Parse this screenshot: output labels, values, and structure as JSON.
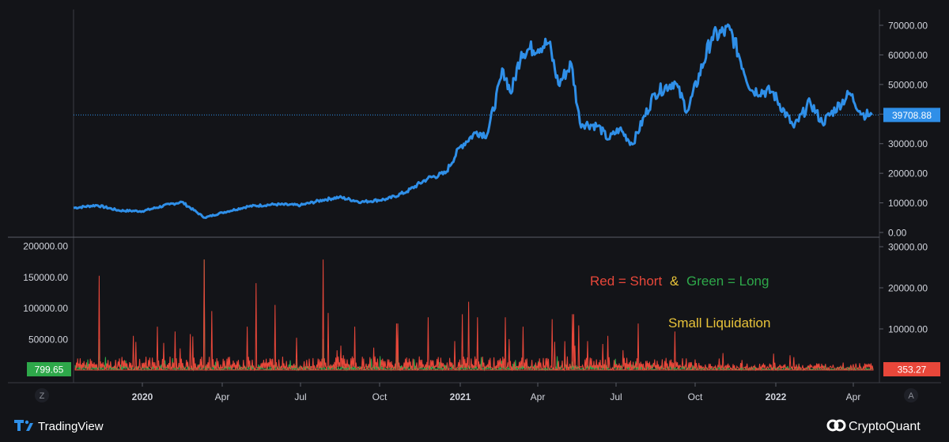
{
  "chart_data": [
    {
      "type": "line",
      "name": "price",
      "x_ticks": [
        "2020",
        "Apr",
        "Jul",
        "Oct",
        "2021",
        "Apr",
        "Jul",
        "Oct",
        "2022",
        "Apr"
      ],
      "y_ticks": [
        "70000.00",
        "60000.00",
        "50000.00",
        "40000.00",
        "30000.00",
        "20000.00",
        "10000.00",
        "0.00"
      ],
      "ylim": [
        0,
        70000
      ],
      "last_value_label": "39708.88",
      "last_value": 39708.88,
      "color": "#2f8fe8",
      "points": [
        [
          "2019-10-01",
          8300
        ],
        [
          "2019-11-01",
          9200
        ],
        [
          "2019-12-01",
          7400
        ],
        [
          "2020-01-01",
          7200
        ],
        [
          "2020-02-01",
          9500
        ],
        [
          "2020-02-15",
          10300
        ],
        [
          "2020-03-12",
          5000
        ],
        [
          "2020-04-01",
          6700
        ],
        [
          "2020-05-01",
          8800
        ],
        [
          "2020-06-01",
          9500
        ],
        [
          "2020-07-01",
          9200
        ],
        [
          "2020-07-27",
          11000
        ],
        [
          "2020-08-15",
          11900
        ],
        [
          "2020-09-10",
          10300
        ],
        [
          "2020-10-10",
          11300
        ],
        [
          "2020-11-01",
          13800
        ],
        [
          "2020-11-25",
          18300
        ],
        [
          "2020-12-15",
          20000
        ],
        [
          "2021-01-01",
          29000
        ],
        [
          "2021-01-20",
          34000
        ],
        [
          "2021-02-01",
          33000
        ],
        [
          "2021-02-20",
          55000
        ],
        [
          "2021-03-01",
          47000
        ],
        [
          "2021-03-13",
          61000
        ],
        [
          "2021-04-14",
          64000
        ],
        [
          "2021-04-25",
          50000
        ],
        [
          "2021-05-10",
          57000
        ],
        [
          "2021-05-20",
          37000
        ],
        [
          "2021-06-10",
          36000
        ],
        [
          "2021-06-22",
          31500
        ],
        [
          "2021-07-05",
          35000
        ],
        [
          "2021-07-20",
          29800
        ],
        [
          "2021-08-15",
          47000
        ],
        [
          "2021-09-07",
          51000
        ],
        [
          "2021-09-22",
          41000
        ],
        [
          "2021-10-20",
          66000
        ],
        [
          "2021-11-10",
          68500
        ],
        [
          "2021-12-04",
          48000
        ],
        [
          "2021-12-28",
          47500
        ],
        [
          "2022-01-22",
          35500
        ],
        [
          "2022-02-10",
          44000
        ],
        [
          "2022-02-24",
          37000
        ],
        [
          "2022-03-28",
          47000
        ],
        [
          "2022-04-11",
          40000
        ],
        [
          "2022-04-22",
          39708.88
        ]
      ]
    },
    {
      "type": "area",
      "name": "liquidations",
      "y_ticks_left": [
        "200000.00",
        "150000.00",
        "100000.00",
        "50000.00"
      ],
      "ylim_left": [
        0,
        200000
      ],
      "y_ticks_right": [
        "30000.00",
        "20000.00",
        "10000.00"
      ],
      "ylim_right": [
        0,
        30000
      ],
      "last_value_left_label": "799.65",
      "last_value_right_label": "353.27",
      "short_color": "#e8473a",
      "long_color": "#2ea84a",
      "short_spikes": [
        [
          "2019-11-05",
          152000
        ],
        [
          "2019-12-20",
          55000
        ],
        [
          "2020-01-18",
          70000
        ],
        [
          "2020-02-07",
          62000
        ],
        [
          "2020-02-25",
          58000
        ],
        [
          "2020-03-12",
          178000
        ],
        [
          "2020-03-20",
          95000
        ],
        [
          "2020-04-30",
          70000
        ],
        [
          "2020-05-10",
          140000
        ],
        [
          "2020-06-02",
          105000
        ],
        [
          "2020-07-27",
          178000
        ],
        [
          "2020-08-02",
          92000
        ],
        [
          "2020-09-02",
          70000
        ],
        [
          "2020-10-21",
          75000
        ],
        [
          "2020-11-25",
          85000
        ],
        [
          "2021-01-04",
          90000
        ],
        [
          "2021-01-11",
          110000
        ],
        [
          "2021-01-21",
          85000
        ],
        [
          "2021-02-22",
          85000
        ],
        [
          "2021-03-15",
          70000
        ],
        [
          "2021-04-18",
          82000
        ],
        [
          "2021-05-12",
          90000
        ],
        [
          "2021-05-19",
          72000
        ],
        [
          "2021-06-21",
          55000
        ],
        [
          "2021-07-27",
          75000
        ],
        [
          "2021-09-07",
          62000
        ]
      ],
      "long_spikes": [
        [
          "2019-11-05",
          50000
        ],
        [
          "2020-03-12",
          178000
        ],
        [
          "2020-07-27",
          50000
        ],
        [
          "2020-10-21",
          35000
        ]
      ]
    }
  ],
  "annotations": {
    "legend_red": "Red = Short",
    "legend_amp": "&",
    "legend_green": "Green = Long",
    "small_liquidation": "Small Liquidation"
  },
  "footer": {
    "left_brand": "TradingView",
    "right_brand": "CryptoQuant",
    "z_button": "Z",
    "a_button": "A"
  },
  "colors": {
    "background": "#131418",
    "axis_text": "#d1d4dc",
    "red_text": "#e8473a",
    "green_text": "#2ea84a",
    "yellow_text": "#e8c33a"
  }
}
